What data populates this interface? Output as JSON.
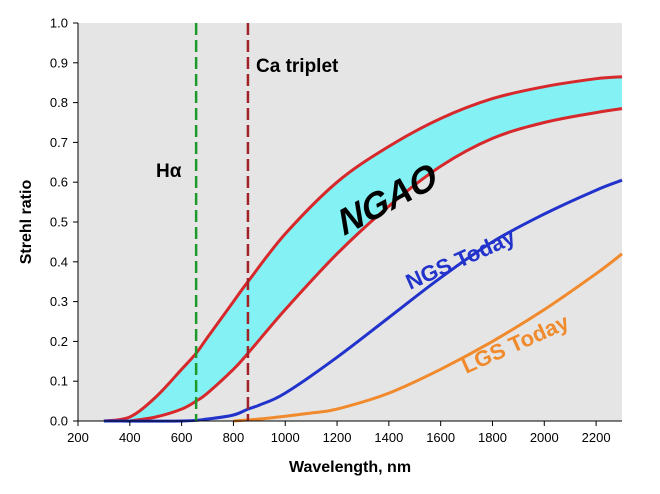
{
  "chart_data": {
    "type": "line",
    "xlabel": "Wavelength, nm",
    "ylabel": "Strehl ratio",
    "xlim": [
      200,
      2300
    ],
    "ylim": [
      0,
      1.0
    ],
    "x_ticks": [
      "200",
      "400",
      "600",
      "800",
      "1000",
      "1200",
      "1400",
      "1600",
      "1800",
      "2000",
      "2200"
    ],
    "y_ticks": [
      "0.0",
      "0.1",
      "0.2",
      "0.3",
      "0.4",
      "0.5",
      "0.6",
      "0.7",
      "0.8",
      "0.9",
      "1.0"
    ],
    "grid": false,
    "background": "#e5e5e5",
    "band": {
      "label": "NGAO",
      "fill": "#84f1f5",
      "edge_color": "#d7282b",
      "upper": {
        "x": [
          300,
          400,
          500,
          600,
          656,
          700,
          800,
          856,
          1000,
          1200,
          1400,
          1600,
          1800,
          2000,
          2200,
          2300
        ],
        "y": [
          0.0,
          0.01,
          0.06,
          0.13,
          0.17,
          0.21,
          0.3,
          0.35,
          0.47,
          0.6,
          0.69,
          0.76,
          0.81,
          0.84,
          0.86,
          0.865
        ]
      },
      "lower": {
        "x": [
          400,
          500,
          600,
          656,
          700,
          800,
          856,
          1000,
          1200,
          1400,
          1600,
          1800,
          2000,
          2200,
          2300
        ],
        "y": [
          0.0,
          0.01,
          0.03,
          0.05,
          0.07,
          0.13,
          0.17,
          0.28,
          0.42,
          0.54,
          0.64,
          0.71,
          0.75,
          0.775,
          0.785
        ]
      }
    },
    "series": [
      {
        "name": "NGS Today",
        "color": "#2233cc",
        "x": [
          300,
          600,
          700,
          800,
          856,
          900,
          1000,
          1200,
          1400,
          1600,
          1800,
          2000,
          2200,
          2300
        ],
        "y": [
          0.0,
          0.0,
          0.005,
          0.015,
          0.03,
          0.04,
          0.07,
          0.16,
          0.26,
          0.36,
          0.45,
          0.52,
          0.58,
          0.605
        ]
      },
      {
        "name": "LGS Today",
        "color": "#f08a2c",
        "x": [
          800,
          900,
          1000,
          1100,
          1200,
          1400,
          1600,
          1800,
          2000,
          2200,
          2300
        ],
        "y": [
          0.0,
          0.005,
          0.012,
          0.02,
          0.03,
          0.07,
          0.13,
          0.2,
          0.28,
          0.37,
          0.42
        ]
      }
    ],
    "vlines": [
      {
        "label": "Hα",
        "x": 656,
        "color": "#1e9a2b"
      },
      {
        "label": "Ca triplet",
        "x": 856,
        "color": "#a12327"
      }
    ]
  }
}
